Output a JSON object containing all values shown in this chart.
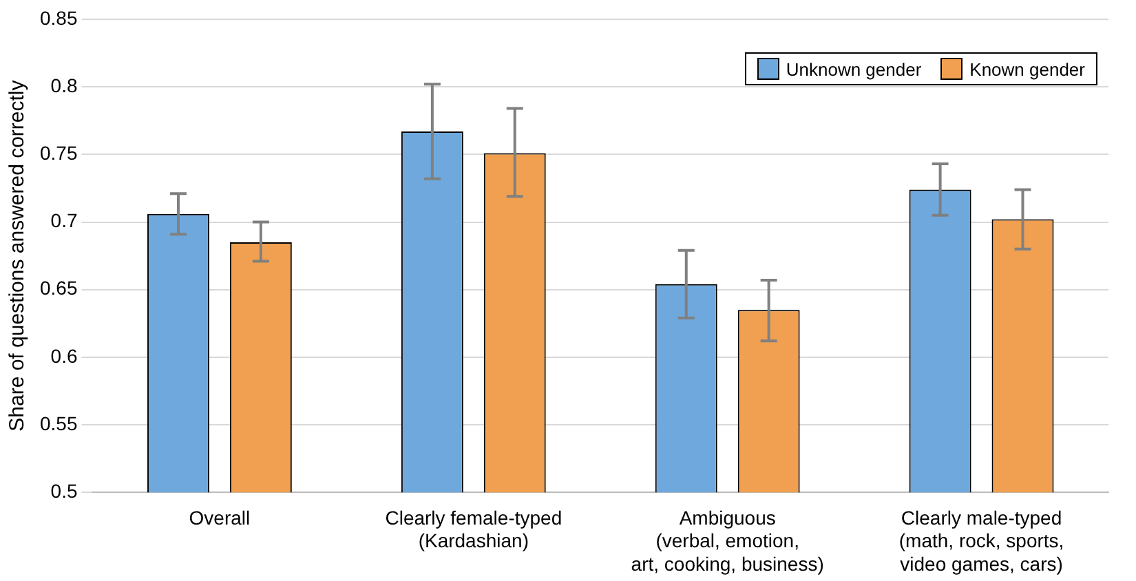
{
  "chart_data": {
    "type": "bar",
    "ylabel": "Share of questions answered correctly",
    "categories": [
      "Overall",
      "Clearly female-typed\n(Kardashian)",
      "Ambiguous\n(verbal, emotion,\nart, cooking, business)",
      "Clearly male-typed\n(math, rock, sports,\nvideo games, cars)"
    ],
    "series": [
      {
        "name": "Unknown gender",
        "color": "#6fa8dc",
        "values": [
          0.706,
          0.767,
          0.654,
          0.724
        ],
        "errors": [
          [
            0.691,
            0.721
          ],
          [
            0.732,
            0.802
          ],
          [
            0.629,
            0.679
          ],
          [
            0.705,
            0.743
          ]
        ]
      },
      {
        "name": "Known gender",
        "color": "#f0a050",
        "values": [
          0.685,
          0.751,
          0.635,
          0.702
        ],
        "errors": [
          [
            0.671,
            0.7
          ],
          [
            0.719,
            0.784
          ],
          [
            0.612,
            0.657
          ],
          [
            0.68,
            0.724
          ]
        ]
      }
    ],
    "ylim": [
      0.5,
      0.85
    ],
    "yticks": [
      0.5,
      0.55,
      0.6,
      0.65,
      0.7,
      0.75,
      0.8,
      0.85
    ],
    "grid": "y",
    "legend": "top right"
  }
}
